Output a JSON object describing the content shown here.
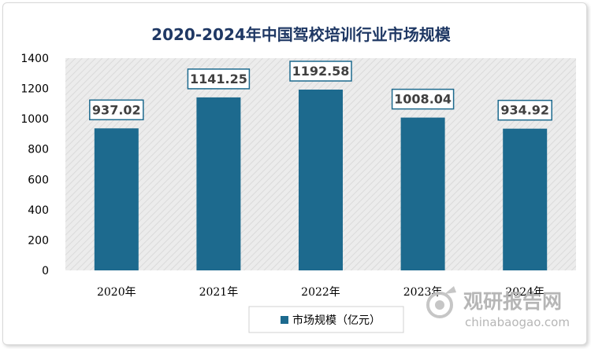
{
  "chart_data": {
    "type": "bar",
    "title": "2020-2024年中国驾校培训行业市场规模",
    "categories": [
      "2020年",
      "2021年",
      "2022年",
      "2023年",
      "2024年"
    ],
    "series": [
      {
        "name": "市场规模（亿元）",
        "values": [
          937.02,
          1141.25,
          1192.58,
          1008.04,
          934.92
        ]
      }
    ],
    "data_labels": [
      "937.02",
      "1141.25",
      "1192.58",
      "1008.04",
      "934.92"
    ],
    "ylim": [
      0,
      1400
    ],
    "yticks": [
      "0",
      "200",
      "400",
      "600",
      "800",
      "1000",
      "1200",
      "1400"
    ],
    "grid": false,
    "legend_position": "bottom",
    "bar_color": "#1d6a8e",
    "plot_background": "hatched-light-gray"
  },
  "watermark": {
    "cn": "观研报告网",
    "en": "chinabaogao.com",
    "icon": "watermark-logo-icon"
  }
}
